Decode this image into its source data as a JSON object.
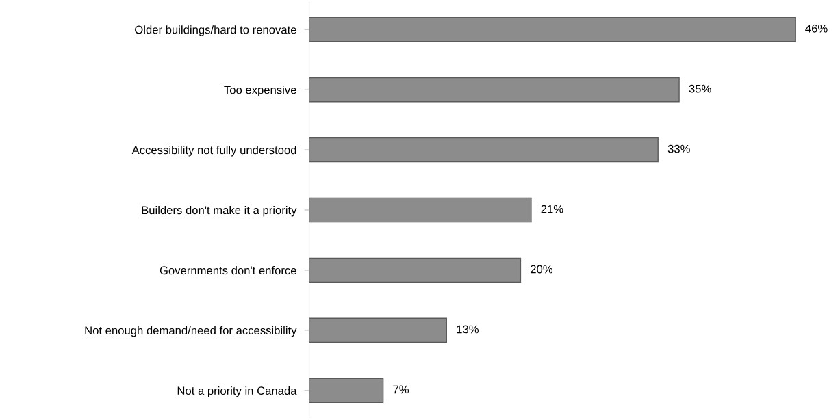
{
  "chart_data": {
    "type": "bar",
    "orientation": "horizontal",
    "categories": [
      "Older buildings/hard to renovate",
      "Too expensive",
      "Accessibility not fully understood",
      "Builders don't make it a priority",
      "Governments don't enforce",
      "Not enough demand/need for accessibility",
      "Not a priority in Canada"
    ],
    "values": [
      46,
      35,
      33,
      21,
      20,
      13,
      7
    ],
    "value_labels": [
      "46%",
      "35%",
      "33%",
      "21%",
      "20%",
      "13%",
      "7%"
    ],
    "color": "#8c8c8c",
    "grid": false,
    "legend": false,
    "tick_labels": "y"
  }
}
